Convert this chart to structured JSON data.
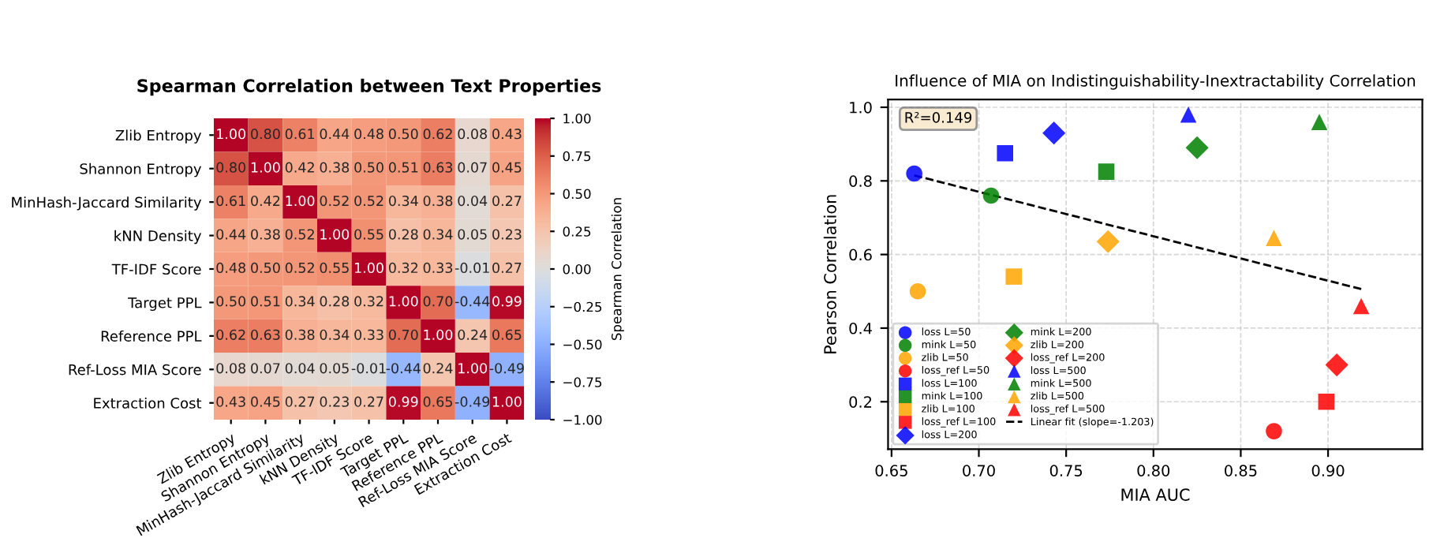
{
  "chart_data": [
    {
      "type": "heatmap",
      "title": "Spearman Correlation between Text Properties",
      "categories": [
        "Zlib Entropy",
        "Shannon Entropy",
        "MinHash-Jaccard Similarity",
        "kNN Density",
        "TF-IDF Score",
        "Target PPL",
        "Reference PPL",
        "Ref-Loss MIA Score",
        "Extraction Cost"
      ],
      "y_categories": [
        "Zlib Entropy",
        "Shannon Entropy",
        "MinHash-Jaccard Similarity",
        "kNN Density",
        "TF-IDF Score",
        "Target PPL",
        "Reference PPL",
        "Ref-Loss MIA Score",
        "Extraction Cost"
      ],
      "cells": [
        [
          1.0,
          0.8,
          0.61,
          0.44,
          0.48,
          0.5,
          0.62,
          0.08,
          0.43
        ],
        [
          0.8,
          1.0,
          0.42,
          0.38,
          0.5,
          0.51,
          0.63,
          0.07,
          0.45
        ],
        [
          0.61,
          0.42,
          1.0,
          0.52,
          0.52,
          0.34,
          0.38,
          0.04,
          0.27
        ],
        [
          0.44,
          0.38,
          0.52,
          1.0,
          0.55,
          0.28,
          0.34,
          0.05,
          0.23
        ],
        [
          0.48,
          0.5,
          0.52,
          0.55,
          1.0,
          0.32,
          0.33,
          -0.01,
          0.27
        ],
        [
          0.5,
          0.51,
          0.34,
          0.28,
          0.32,
          1.0,
          0.7,
          -0.44,
          0.99
        ],
        [
          0.62,
          0.63,
          0.38,
          0.34,
          0.33,
          0.7,
          1.0,
          0.24,
          0.65
        ],
        [
          0.08,
          0.07,
          0.04,
          0.05,
          -0.01,
          -0.44,
          0.24,
          1.0,
          -0.49
        ],
        [
          0.43,
          0.45,
          0.27,
          0.23,
          0.27,
          0.99,
          0.65,
          -0.49,
          1.0
        ]
      ],
      "cell_labels": [
        [
          "1.00",
          "0.80",
          "0.61",
          "0.44",
          "0.48",
          "0.50",
          "0.62",
          "0.08",
          "0.43"
        ],
        [
          "0.80",
          "1.00",
          "0.42",
          "0.38",
          "0.50",
          "0.51",
          "0.63",
          "0.07",
          "0.45"
        ],
        [
          "0.61",
          "0.42",
          "1.00",
          "0.52",
          "0.52",
          "0.34",
          "0.38",
          "0.04",
          "0.27"
        ],
        [
          "0.44",
          "0.38",
          "0.52",
          "1.00",
          "0.55",
          "0.28",
          "0.34",
          "0.05",
          "0.23"
        ],
        [
          "0.48",
          "0.50",
          "0.52",
          "0.55",
          "1.00",
          "0.32",
          "0.33",
          "-0.01",
          "0.27"
        ],
        [
          "0.50",
          "0.51",
          "0.34",
          "0.28",
          "0.32",
          "1.00",
          "0.70",
          "-0.44",
          "0.99"
        ],
        [
          "0.62",
          "0.63",
          "0.38",
          "0.34",
          "0.33",
          "0.70",
          "1.00",
          "0.24",
          "0.65"
        ],
        [
          "0.08",
          "0.07",
          "0.04",
          "0.05",
          "-0.01",
          "-0.44",
          "0.24",
          "1.00",
          "-0.49"
        ],
        [
          "0.43",
          "0.45",
          "0.27",
          "0.23",
          "0.27",
          "0.99",
          "0.65",
          "-0.49",
          "1.00"
        ]
      ],
      "clim": [
        -1,
        1
      ],
      "cticks": [
        {
          "value": -1,
          "label": "−1.00"
        },
        {
          "value": -0.75,
          "label": "−0.75"
        },
        {
          "value": -0.5,
          "label": "−0.50"
        },
        {
          "value": -0.25,
          "label": "−0.25"
        },
        {
          "value": 0,
          "label": "0.00"
        },
        {
          "value": 0.25,
          "label": "0.25"
        },
        {
          "value": 0.5,
          "label": "0.50"
        },
        {
          "value": 0.75,
          "label": "0.75"
        },
        {
          "value": 1,
          "label": "1.00"
        }
      ],
      "clabel": "Spearman Correlation"
    },
    {
      "type": "scatter",
      "title": "Influence of MIA on Indistinguishability-Inextractability Correlation",
      "xlabel": "MIA AUC",
      "ylabel": "Pearson Correlation",
      "xlim": [
        0.648,
        0.954
      ],
      "ylim": [
        0.071,
        1.021
      ],
      "xticks": [
        0.65,
        {
          "value": 0.7,
          "label": "0.70"
        },
        0.75,
        {
          "value": 0.8,
          "label": "0.80"
        },
        0.85,
        {
          "value": 0.9,
          "label": "0.90"
        }
      ],
      "yticks": [
        0.2,
        0.4,
        0.6,
        0.8,
        {
          "value": 1.0,
          "label": "1.0"
        }
      ],
      "grid": true,
      "legend": "bottom left",
      "annotations": [
        "R²=0.149"
      ],
      "series": [
        {
          "name": "loss L=50",
          "color": "#0000ff",
          "marker": "circle",
          "x": [
            0.663
          ],
          "values": [
            0.82
          ]
        },
        {
          "name": "mink L=50",
          "color": "#008000",
          "marker": "circle",
          "x": [
            0.707
          ],
          "values": [
            0.76
          ]
        },
        {
          "name": "zlib L=50",
          "color": "#ffa500",
          "marker": "circle",
          "x": [
            0.665
          ],
          "values": [
            0.5
          ]
        },
        {
          "name": "loss_ref L=50",
          "color": "#ff0000",
          "marker": "circle",
          "x": [
            0.869
          ],
          "values": [
            0.12
          ]
        },
        {
          "name": "loss L=100",
          "color": "#0000ff",
          "marker": "square",
          "x": [
            0.715
          ],
          "values": [
            0.875
          ]
        },
        {
          "name": "mink L=100",
          "color": "#008000",
          "marker": "square",
          "x": [
            0.773
          ],
          "values": [
            0.825
          ]
        },
        {
          "name": "zlib L=100",
          "color": "#ffa500",
          "marker": "square",
          "x": [
            0.72
          ],
          "values": [
            0.54
          ]
        },
        {
          "name": "loss_ref L=100",
          "color": "#ff0000",
          "marker": "square",
          "x": [
            0.899
          ],
          "values": [
            0.2
          ]
        },
        {
          "name": "loss L=200",
          "color": "#0000ff",
          "marker": "diamond",
          "x": [
            0.743
          ],
          "values": [
            0.93
          ]
        },
        {
          "name": "mink L=200",
          "color": "#008000",
          "marker": "diamond",
          "x": [
            0.825
          ],
          "values": [
            0.89
          ]
        },
        {
          "name": "zlib L=200",
          "color": "#ffa500",
          "marker": "diamond",
          "x": [
            0.774
          ],
          "values": [
            0.635
          ]
        },
        {
          "name": "loss_ref L=200",
          "color": "#ff0000",
          "marker": "diamond",
          "x": [
            0.905
          ],
          "values": [
            0.3
          ]
        },
        {
          "name": "loss L=500",
          "color": "#0000ff",
          "marker": "triangle",
          "x": [
            0.82
          ],
          "values": [
            0.98
          ]
        },
        {
          "name": "mink L=500",
          "color": "#008000",
          "marker": "triangle",
          "x": [
            0.895
          ],
          "values": [
            0.96
          ]
        },
        {
          "name": "zlib L=500",
          "color": "#ffa500",
          "marker": "triangle",
          "x": [
            0.869
          ],
          "values": [
            0.645
          ]
        },
        {
          "name": "loss_ref L=500",
          "color": "#ff0000",
          "marker": "triangle",
          "x": [
            0.919
          ],
          "values": [
            0.46
          ]
        },
        {
          "name": "Linear fit (slope=-1.203)",
          "type": "line",
          "color": "#000000",
          "line_style": "dashed",
          "marker": "none",
          "x": [
            0.663,
            0.919
          ],
          "values": [
            0.815,
            0.506
          ]
        }
      ]
    }
  ]
}
